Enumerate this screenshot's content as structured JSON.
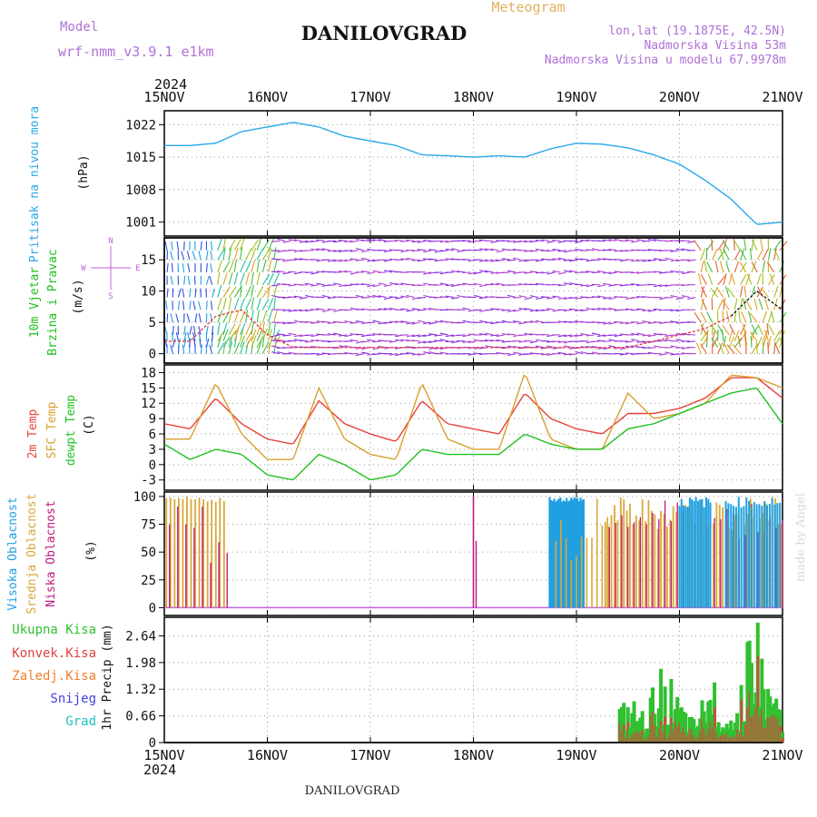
{
  "header": {
    "model_label": "Model",
    "model_value": "wrf-nmm_v3.9.1 e1km",
    "title": "DANILOVGRAD",
    "meteogram_label": "Meteogram",
    "lonlat": "lon,lat (19.1875E, 42.5N)",
    "elevation": "Nadmorska Visina 53m",
    "model_elevation": "Nadmorska Visina u modelu 67.9978m",
    "year_top": "2024",
    "year_bottom": "2024",
    "footer": "DANILOVGRAD",
    "credit": "made by Angel"
  },
  "time_axis": {
    "labels": [
      "15NOV",
      "16NOV",
      "17NOV",
      "18NOV",
      "19NOV",
      "20NOV",
      "21NOV"
    ],
    "days": [
      0,
      1,
      2,
      3,
      4,
      5,
      6
    ]
  },
  "colors": {
    "pressure": "#2aa8e8",
    "t2m": "#e8403a",
    "sfc": "#d8a030",
    "dewpt": "#20c020",
    "high_cloud": "#20a0e0",
    "mid_cloud": "#d8a838",
    "low_cloud": "#c01880",
    "total_precip": "#30c030",
    "conv_precip": "#e04040",
    "frz_precip": "#f08030",
    "snow": "#4040e0",
    "hail": "#20c0c0",
    "wind_label": "#20c020",
    "compass": "#c060e0"
  },
  "panels": {
    "pressure": {
      "label": "Pritisak na nivou mora",
      "unit": "(hPa)",
      "ticks": [
        "1001",
        "1008",
        "1015",
        "1022"
      ]
    },
    "wind": {
      "label1": "10m Vjetar",
      "label2": "Brzina i Pravac",
      "unit": "(m/s)",
      "ticks": [
        "0",
        "5",
        "10",
        "15"
      ],
      "compass": {
        "n": "N",
        "s": "S",
        "e": "E",
        "w": "W"
      }
    },
    "temp": {
      "label_t2m": "2m Temp",
      "label_sfc": "SFC Temp",
      "label_dew": "dewpt Temp",
      "unit": "(C)",
      "ticks": [
        "-3",
        "0",
        "3",
        "6",
        "9",
        "12",
        "15",
        "18"
      ]
    },
    "cloud": {
      "label_high": "Visoka Oblacnost",
      "label_mid": "Srednja Oblacnost",
      "label_low": "Niska Oblacnost",
      "unit": "(%)",
      "ticks": [
        "0",
        "25",
        "50",
        "75",
        "100"
      ]
    },
    "precip": {
      "legend": [
        "Ukupna Kisa",
        "Konvek.Kisa",
        "Zaledj.Kisa",
        "Snijeg",
        "Grad"
      ],
      "label": "1hr Precip (mm)",
      "ticks": [
        "0",
        "0.66",
        "1.32",
        "1.98",
        "2.64"
      ]
    }
  },
  "chart_data": [
    {
      "type": "line",
      "name": "Pritisak na nivou mora",
      "ylabel": "(hPa)",
      "ylim": [
        998,
        1025
      ],
      "x": [
        0,
        0.25,
        0.5,
        0.75,
        1.0,
        1.25,
        1.5,
        1.75,
        2.0,
        2.25,
        2.5,
        2.75,
        3.0,
        3.25,
        3.5,
        3.75,
        4.0,
        4.25,
        4.5,
        4.75,
        5.0,
        5.25,
        5.5,
        5.75,
        6.0
      ],
      "series": [
        {
          "name": "Pritisak",
          "values": [
            1017.5,
            1017.5,
            1018.0,
            1020.5,
            1021.5,
            1022.5,
            1021.5,
            1019.5,
            1018.5,
            1017.5,
            1015.5,
            1015.3,
            1015.0,
            1015.3,
            1015.0,
            1016.8,
            1018.0,
            1017.8,
            1017.0,
            1015.5,
            1013.5,
            1010.0,
            1006.0,
            1000.5,
            1001.0
          ]
        }
      ]
    },
    {
      "type": "line",
      "name": "10m Vjetar",
      "ylabel": "(m/s)",
      "ylim": [
        -1.5,
        18.5
      ],
      "x": [
        0,
        0.25,
        0.5,
        0.75,
        1.0,
        1.25,
        1.5,
        1.75,
        2.0,
        2.25,
        2.5,
        2.75,
        3.0,
        3.25,
        3.5,
        3.75,
        4.0,
        4.25,
        4.5,
        4.75,
        5.0,
        5.25,
        5.5,
        5.75,
        6.0
      ],
      "series": [
        {
          "name": "Brzina",
          "values": [
            2,
            2,
            6,
            7,
            3,
            1,
            1,
            1,
            1,
            1,
            1,
            1,
            1,
            1,
            1,
            1,
            1,
            1,
            1,
            2,
            3,
            4,
            6,
            10,
            7
          ]
        }
      ]
    },
    {
      "type": "line",
      "name": "Temperatura",
      "ylabel": "(C)",
      "ylim": [
        -5,
        19.5
      ],
      "x": [
        0,
        0.25,
        0.5,
        0.75,
        1.0,
        1.25,
        1.5,
        1.75,
        2.0,
        2.25,
        2.5,
        2.75,
        3.0,
        3.25,
        3.5,
        3.75,
        4.0,
        4.25,
        4.5,
        4.75,
        5.0,
        5.25,
        5.5,
        5.75,
        6.0
      ],
      "series": [
        {
          "name": "2m Temp",
          "values": [
            8,
            7,
            13,
            8,
            5,
            4,
            12.5,
            8,
            6,
            4.5,
            12.5,
            8,
            7,
            6,
            14,
            9,
            7,
            6,
            10,
            10,
            11,
            13,
            17,
            17,
            13
          ]
        },
        {
          "name": "SFC Temp",
          "values": [
            5,
            5,
            16,
            6,
            1,
            1,
            15,
            5,
            2,
            1,
            16,
            5,
            3,
            3,
            18,
            5,
            3,
            3,
            14,
            9,
            10,
            12,
            17.5,
            17,
            15
          ]
        },
        {
          "name": "dewpt Temp",
          "values": [
            4,
            1,
            3,
            2,
            -2,
            -3,
            2,
            0,
            -3,
            -2,
            3,
            2,
            2,
            2,
            6,
            4,
            3,
            3,
            7,
            8,
            10,
            12,
            14,
            15,
            8
          ]
        }
      ]
    },
    {
      "type": "bar",
      "name": "Oblacnost",
      "ylabel": "(%)",
      "ylim": [
        0,
        100
      ],
      "x": [
        0.1,
        0.35,
        0.6,
        3.0,
        3.75,
        4.0,
        4.25,
        4.5,
        4.75,
        5.0,
        5.25,
        5.5,
        5.75,
        6.0
      ],
      "series": [
        {
          "name": "Visoka Oblacnost",
          "values": [
            0,
            0,
            0,
            0,
            100,
            100,
            100,
            0,
            0,
            0,
            100,
            100,
            100,
            100
          ]
        },
        {
          "name": "Srednja Oblacnost",
          "values": [
            100,
            100,
            100,
            0,
            100,
            60,
            30,
            100,
            100,
            100,
            100,
            100,
            100,
            100
          ]
        },
        {
          "name": "Niska Oblacnost",
          "values": [
            90,
            85,
            40,
            100,
            0,
            10,
            0,
            100,
            100,
            100,
            90,
            100,
            100,
            100
          ]
        }
      ]
    },
    {
      "type": "bar",
      "name": "1hr Precip",
      "ylabel": "(mm)",
      "ylim": [
        0,
        3.1
      ],
      "x": [
        4.45,
        4.55,
        4.65,
        4.75,
        4.85,
        4.95,
        5.05,
        5.15,
        5.25,
        5.35,
        5.45,
        5.55,
        5.65,
        5.75,
        5.85,
        5.95
      ],
      "series": [
        {
          "name": "Ukupna Kisa",
          "values": [
            0.9,
            1.0,
            0.7,
            1.3,
            2.1,
            1.2,
            0.8,
            0.5,
            1.2,
            1.5,
            0.9,
            0.6,
            2.8,
            3.0,
            1.4,
            1.2
          ]
        },
        {
          "name": "Konvek.Kisa",
          "values": [
            0.6,
            0.7,
            0.5,
            0.9,
            1.6,
            0.9,
            0.5,
            0.3,
            0.8,
            1.0,
            0.6,
            0.4,
            2.6,
            2.8,
            1.0,
            1.1
          ]
        }
      ]
    }
  ]
}
